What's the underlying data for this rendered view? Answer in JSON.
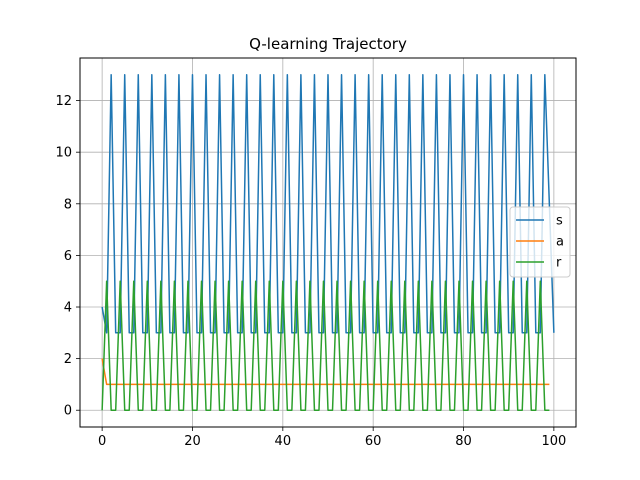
{
  "chart_data": {
    "type": "line",
    "title": "Q-learning Trajectory",
    "xlabel": "",
    "ylabel": "",
    "xlim": [
      -4.9,
      104.9
    ],
    "ylim": [
      -0.65,
      13.65
    ],
    "xticks": [
      0,
      20,
      40,
      60,
      80,
      100
    ],
    "yticks": [
      0,
      2,
      4,
      6,
      8,
      10,
      12
    ],
    "grid": true,
    "legend": {
      "position": "center-right",
      "entries": [
        "s",
        "a",
        "r"
      ]
    },
    "colors": {
      "s": "#1f77b4",
      "a": "#ff7f0e",
      "r": "#2ca02c"
    },
    "series": [
      {
        "name": "s",
        "color": "#1f77b4",
        "x": [
          0,
          1,
          2,
          3,
          4,
          5,
          6,
          7,
          8,
          9,
          10,
          11,
          12,
          13,
          14,
          15,
          16,
          17,
          18,
          19,
          20,
          21,
          22,
          23,
          24,
          25,
          26,
          27,
          28,
          29,
          30,
          31,
          32,
          33,
          34,
          35,
          36,
          37,
          38,
          39,
          40,
          41,
          42,
          43,
          44,
          45,
          46,
          47,
          48,
          49,
          50,
          51,
          52,
          53,
          54,
          55,
          56,
          57,
          58,
          59,
          60,
          61,
          62,
          63,
          64,
          65,
          66,
          67,
          68,
          69,
          70,
          71,
          72,
          73,
          74,
          75,
          76,
          77,
          78,
          79,
          80,
          81,
          82,
          83,
          84,
          85,
          86,
          87,
          88,
          89,
          90,
          91,
          92,
          93,
          94,
          95,
          96,
          97,
          98,
          99,
          100
        ],
        "y": [
          4,
          3,
          13,
          3,
          3,
          13,
          3,
          3,
          13,
          3,
          3,
          13,
          3,
          3,
          13,
          3,
          3,
          13,
          3,
          3,
          13,
          3,
          3,
          13,
          3,
          3,
          13,
          3,
          3,
          13,
          3,
          3,
          13,
          3,
          3,
          13,
          3,
          3,
          13,
          3,
          3,
          13,
          3,
          3,
          13,
          3,
          3,
          13,
          3,
          3,
          13,
          3,
          3,
          13,
          3,
          3,
          13,
          3,
          3,
          13,
          3,
          3,
          13,
          3,
          3,
          13,
          3,
          3,
          13,
          3,
          3,
          13,
          3,
          3,
          13,
          3,
          3,
          13,
          3,
          3,
          13,
          3,
          3,
          13,
          3,
          3,
          13,
          3,
          3,
          13,
          3,
          3,
          13,
          3,
          3,
          13,
          3,
          3,
          13,
          8,
          3
        ]
      },
      {
        "name": "a",
        "color": "#ff7f0e",
        "x": [
          0,
          1,
          2,
          10,
          20,
          30,
          40,
          50,
          60,
          70,
          80,
          90,
          99
        ],
        "y": [
          2,
          1,
          1,
          1,
          1,
          1,
          1,
          1,
          1,
          1,
          1,
          1,
          1
        ]
      },
      {
        "name": "r",
        "color": "#2ca02c",
        "x": [
          0,
          1,
          2,
          3,
          4,
          5,
          6,
          7,
          8,
          9,
          10,
          11,
          12,
          13,
          14,
          15,
          16,
          17,
          18,
          19,
          20,
          21,
          22,
          23,
          24,
          25,
          26,
          27,
          28,
          29,
          30,
          31,
          32,
          33,
          34,
          35,
          36,
          37,
          38,
          39,
          40,
          41,
          42,
          43,
          44,
          45,
          46,
          47,
          48,
          49,
          50,
          51,
          52,
          53,
          54,
          55,
          56,
          57,
          58,
          59,
          60,
          61,
          62,
          63,
          64,
          65,
          66,
          67,
          68,
          69,
          70,
          71,
          72,
          73,
          74,
          75,
          76,
          77,
          78,
          79,
          80,
          81,
          82,
          83,
          84,
          85,
          86,
          87,
          88,
          89,
          90,
          91,
          92,
          93,
          94,
          95,
          96,
          97,
          98,
          99
        ],
        "y": [
          0,
          5,
          0,
          0,
          5,
          0,
          0,
          5,
          0,
          0,
          5,
          0,
          0,
          5,
          0,
          0,
          5,
          0,
          0,
          5,
          0,
          0,
          5,
          0,
          0,
          5,
          0,
          0,
          5,
          0,
          0,
          5,
          0,
          0,
          5,
          0,
          0,
          5,
          0,
          0,
          5,
          0,
          0,
          5,
          0,
          0,
          5,
          0,
          0,
          5,
          0,
          0,
          5,
          0,
          0,
          5,
          0,
          0,
          5,
          0,
          0,
          5,
          0,
          0,
          5,
          0,
          0,
          5,
          0,
          0,
          5,
          0,
          0,
          5,
          0,
          0,
          5,
          0,
          0,
          5,
          0,
          0,
          5,
          0,
          0,
          5,
          0,
          0,
          5,
          0,
          0,
          5,
          0,
          0,
          5,
          0,
          0,
          5,
          0,
          0
        ]
      }
    ]
  }
}
